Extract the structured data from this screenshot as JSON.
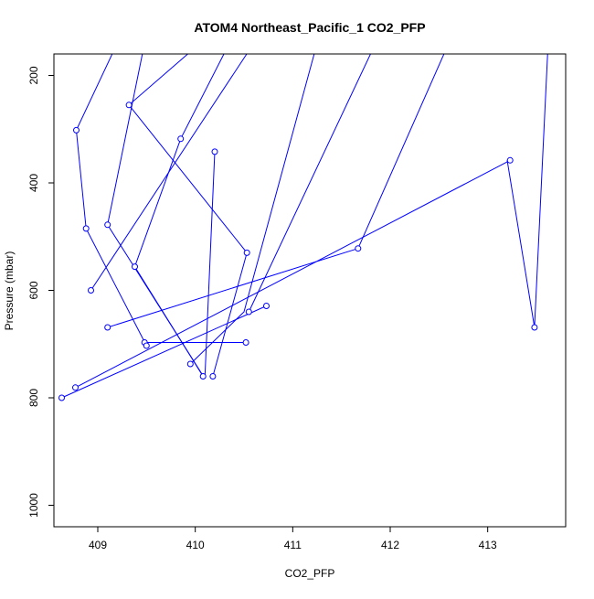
{
  "chart_data": {
    "type": "line",
    "title": "ATOM4 Northeast_Pacific_1 CO2_PFP",
    "xlabel": "CO2_PFP",
    "ylabel": "Pressure (mbar)",
    "xlim": [
      408.55,
      413.8
    ],
    "ylim": [
      1040,
      160
    ],
    "y_inverted": true,
    "x_ticks": [
      409,
      410,
      411,
      412,
      413
    ],
    "y_ticks": [
      200,
      400,
      600,
      800,
      1000
    ],
    "grid": false,
    "series": [
      {
        "name": "",
        "color": "#0000ff",
        "marker": "open-circle",
        "points": [
          {
            "x": 409.2,
            "y": 140,
            "visible": false
          },
          {
            "x": 408.78,
            "y": 302
          },
          {
            "x": 408.88,
            "y": 485
          },
          {
            "x": 409.5,
            "y": 703
          },
          {
            "x": 409.48,
            "y": 697
          },
          {
            "x": 410.52,
            "y": 697
          },
          {
            "x": 410.52,
            "y": 697,
            "hidden_marker": true
          },
          {
            "x": 409.5,
            "y": 697,
            "hidden_marker": true
          }
        ]
      }
    ],
    "path": [
      {
        "x": 409.2,
        "y": 140
      },
      {
        "x": 408.78,
        "y": 302
      },
      {
        "x": 408.88,
        "y": 485
      },
      {
        "x": 409.5,
        "y": 703
      },
      {
        "x": 409.48,
        "y": 697
      },
      {
        "x": 410.52,
        "y": 697
      }
    ]
  },
  "segments": [
    [
      [
        409.2,
        140
      ],
      [
        408.78,
        302
      ],
      [
        408.88,
        485
      ],
      [
        409.5,
        703
      ]
    ],
    [
      [
        409.48,
        697
      ],
      [
        410.52,
        697
      ]
    ],
    [
      [
        409.48,
        140
      ],
      [
        409.1,
        478
      ],
      [
        410.08,
        759
      ]
    ],
    [
      [
        410.05,
        140
      ],
      [
        409.32,
        255
      ],
      [
        410.53,
        530
      ],
      [
        410.18,
        760
      ]
    ],
    [
      [
        410.35,
        140
      ],
      [
        409.85,
        318
      ],
      [
        409.38,
        556
      ],
      [
        410.08,
        760
      ]
    ],
    [
      [
        410.6,
        140
      ],
      [
        408.93,
        600
      ]
    ],
    [
      [
        410.2,
        342
      ],
      [
        410.1,
        759
      ]
    ],
    [
      [
        411.25,
        140
      ],
      [
        410.5,
        640
      ],
      [
        409.95,
        737
      ]
    ],
    [
      [
        411.85,
        140
      ],
      [
        410.55,
        640
      ]
    ],
    [
      [
        412.6,
        140
      ],
      [
        411.67,
        522
      ]
    ],
    [
      [
        411.67,
        522
      ],
      [
        409.1,
        669
      ]
    ],
    [
      [
        413.23,
        358
      ],
      [
        408.77,
        781
      ]
    ],
    [
      [
        413.2,
        358
      ],
      [
        413.48,
        669
      ],
      [
        413.62,
        140
      ]
    ],
    [
      [
        410.73,
        629
      ],
      [
        408.63,
        800
      ]
    ]
  ],
  "markers": [
    [
      408.78,
      302
    ],
    [
      409.32,
      255
    ],
    [
      409.85,
      318
    ],
    [
      410.2,
      342
    ],
    [
      413.23,
      358
    ],
    [
      409.1,
      478
    ],
    [
      408.88,
      485
    ],
    [
      410.53,
      530
    ],
    [
      411.67,
      522
    ],
    [
      409.38,
      556
    ],
    [
      408.93,
      600
    ],
    [
      410.73,
      629
    ],
    [
      410.55,
      640
    ],
    [
      409.1,
      669
    ],
    [
      413.48,
      669
    ],
    [
      409.48,
      697
    ],
    [
      409.5,
      703
    ],
    [
      410.52,
      697
    ],
    [
      409.95,
      737
    ],
    [
      410.08,
      760
    ],
    [
      410.18,
      760
    ],
    [
      408.77,
      781
    ],
    [
      408.63,
      800
    ]
  ]
}
